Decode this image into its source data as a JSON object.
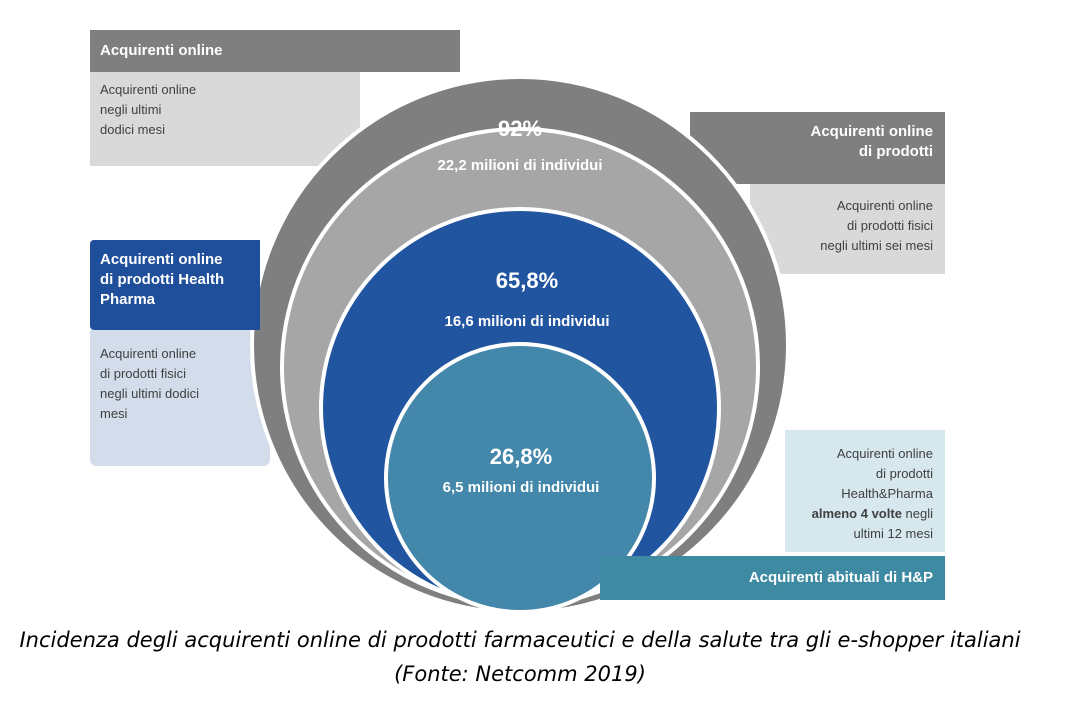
{
  "boxes": {
    "online": {
      "title": "Acquirenti online",
      "desc_lines": [
        "Acquirenti online",
        "negli ultimi",
        "dodici mesi"
      ]
    },
    "products": {
      "title_lines": [
        "Acquirenti online",
        "di prodotti"
      ],
      "desc_lines": [
        "Acquirenti online",
        "di prodotti fisici",
        "negli ultimi sei mesi"
      ]
    },
    "health_pharma": {
      "title_lines": [
        "Acquirenti online",
        "di prodotti Health",
        "Pharma"
      ],
      "desc_lines": [
        "Acquirenti online",
        "di prodotti fisici",
        "negli ultimi dodici",
        "mesi"
      ]
    },
    "habitual": {
      "title": "Acquirenti abituali di H&P",
      "desc_lines": [
        "Acquirenti online",
        "di prodotti",
        "Health&Pharma"
      ],
      "desc_bold": "almeno 4 volte",
      "desc_after_bold": " negli",
      "desc_last": "ultimi 12 mesi"
    }
  },
  "circles": [
    {
      "percent": "92%",
      "people": "22,2 milioni di individui",
      "color": "#a6a6a6"
    },
    {
      "percent": "65,8%",
      "people": "16,6 milioni di individui",
      "color": "#2255a0"
    },
    {
      "percent": "26,8%",
      "people": "6,5 milioni di individui",
      "color": "#4387aa"
    }
  ],
  "outer_ring_color": "#7f7f7f",
  "caption": {
    "line1": "Incidenza degli acquirenti online di prodotti farmaceutici e della salute  tra gli e-shopper italiani",
    "line2": "(Fonte: Netcomm 2019)"
  }
}
